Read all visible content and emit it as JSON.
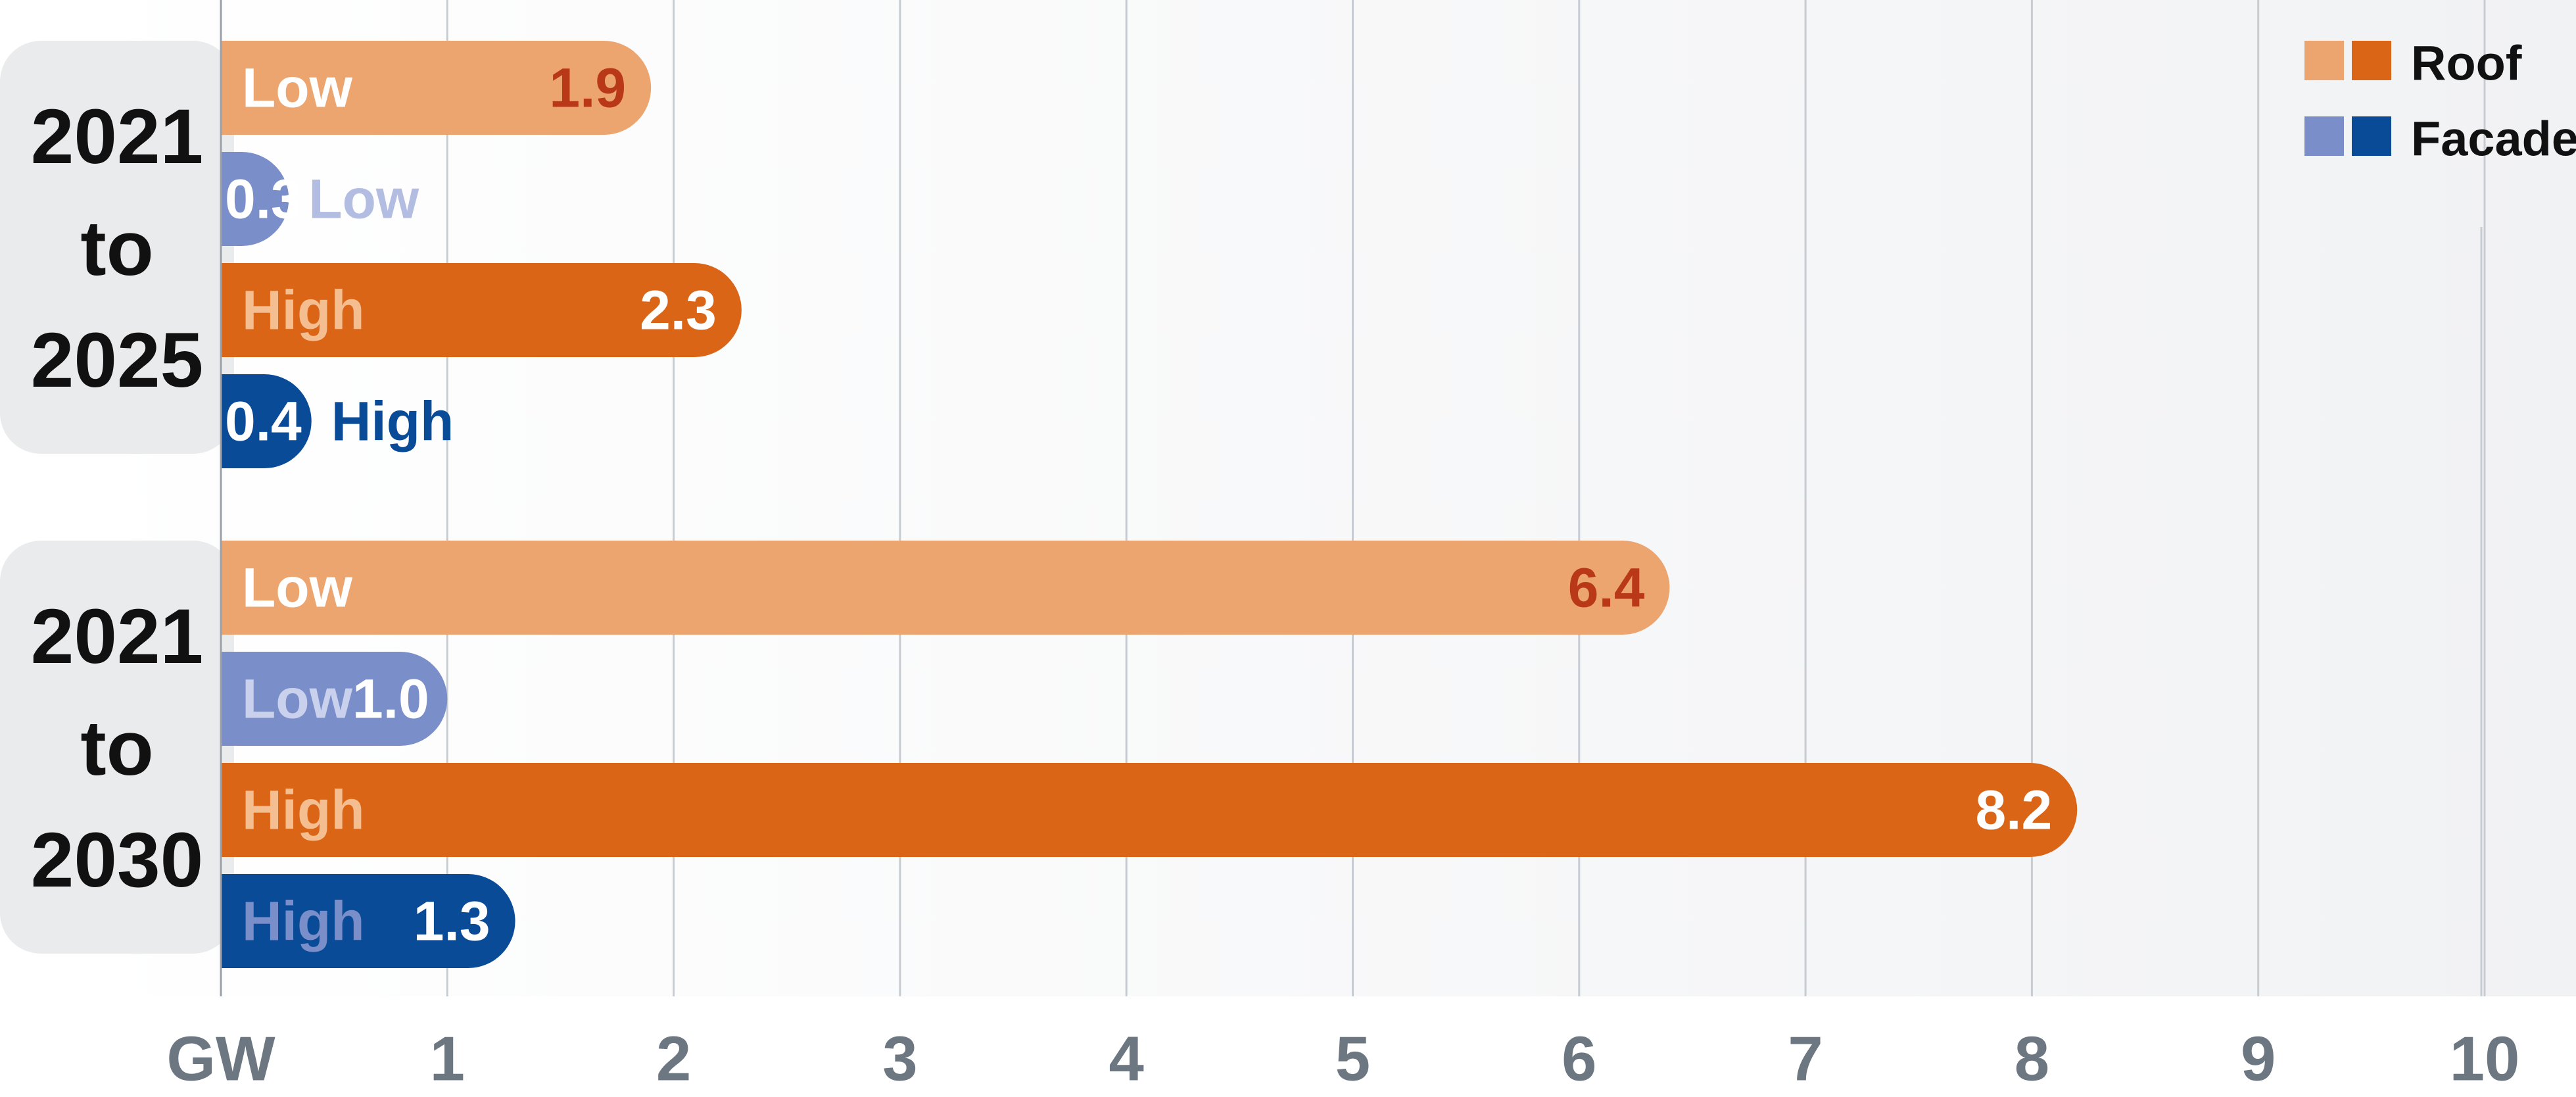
{
  "chart_data": {
    "type": "bar",
    "orientation": "horizontal",
    "unit_label": "GW",
    "x_ticks": [
      "1",
      "2",
      "3",
      "4",
      "5",
      "6",
      "7",
      "8",
      "9",
      "10"
    ],
    "xlim": [
      0,
      10
    ],
    "grid": true,
    "legend_position": "top-right",
    "legend": [
      {
        "name": "Roof",
        "colors": [
          "#eca56f",
          "#db6516"
        ]
      },
      {
        "name": "Facade",
        "colors": [
          "#7a8ec9",
          "#0a4b98"
        ]
      }
    ],
    "groups": [
      {
        "line1": "2021",
        "line2": "to",
        "line3": "2025",
        "bars": [
          {
            "series": "Roof",
            "scenario": "Low",
            "value": 1.9,
            "value_text": "1.9",
            "fill": "#eca56f",
            "label_color": "#ffffff",
            "value_color": "#b83818",
            "layout": "inside"
          },
          {
            "series": "Facade",
            "scenario": "Low",
            "value": 0.3,
            "value_text": "0.3",
            "fill": "#7a8ec9",
            "label_color": "#b3bde2",
            "value_color": "#ffffff",
            "layout": "outside"
          },
          {
            "series": "Roof",
            "scenario": "High",
            "value": 2.3,
            "value_text": "2.3",
            "fill": "#db6516",
            "label_color": "#f5be91",
            "value_color": "#ffffff",
            "layout": "inside"
          },
          {
            "series": "Facade",
            "scenario": "High",
            "value": 0.4,
            "value_text": "0.4",
            "fill": "#0a4b98",
            "label_color": "#0a4b98",
            "value_color": "#ffffff",
            "layout": "outside"
          }
        ]
      },
      {
        "line1": "2021",
        "line2": "to",
        "line3": "2030",
        "bars": [
          {
            "series": "Roof",
            "scenario": "Low",
            "value": 6.4,
            "value_text": "6.4",
            "fill": "#eca56f",
            "label_color": "#ffffff",
            "value_color": "#b83818",
            "layout": "inside"
          },
          {
            "series": "Facade",
            "scenario": "Low",
            "value": 1.0,
            "value_text": "1.0",
            "fill": "#7a8ec9",
            "label_color": "#c9d1ec",
            "value_color": "#ffffff",
            "layout": "inline"
          },
          {
            "series": "Roof",
            "scenario": "High",
            "value": 8.2,
            "value_text": "8.2",
            "fill": "#db6516",
            "label_color": "#f5be91",
            "value_color": "#ffffff",
            "layout": "inside"
          },
          {
            "series": "Facade",
            "scenario": "High",
            "value": 1.3,
            "value_text": "1.3",
            "fill": "#0a4b98",
            "label_color": "#7a8ec9",
            "value_color": "#ffffff",
            "layout": "inside"
          }
        ]
      }
    ]
  }
}
